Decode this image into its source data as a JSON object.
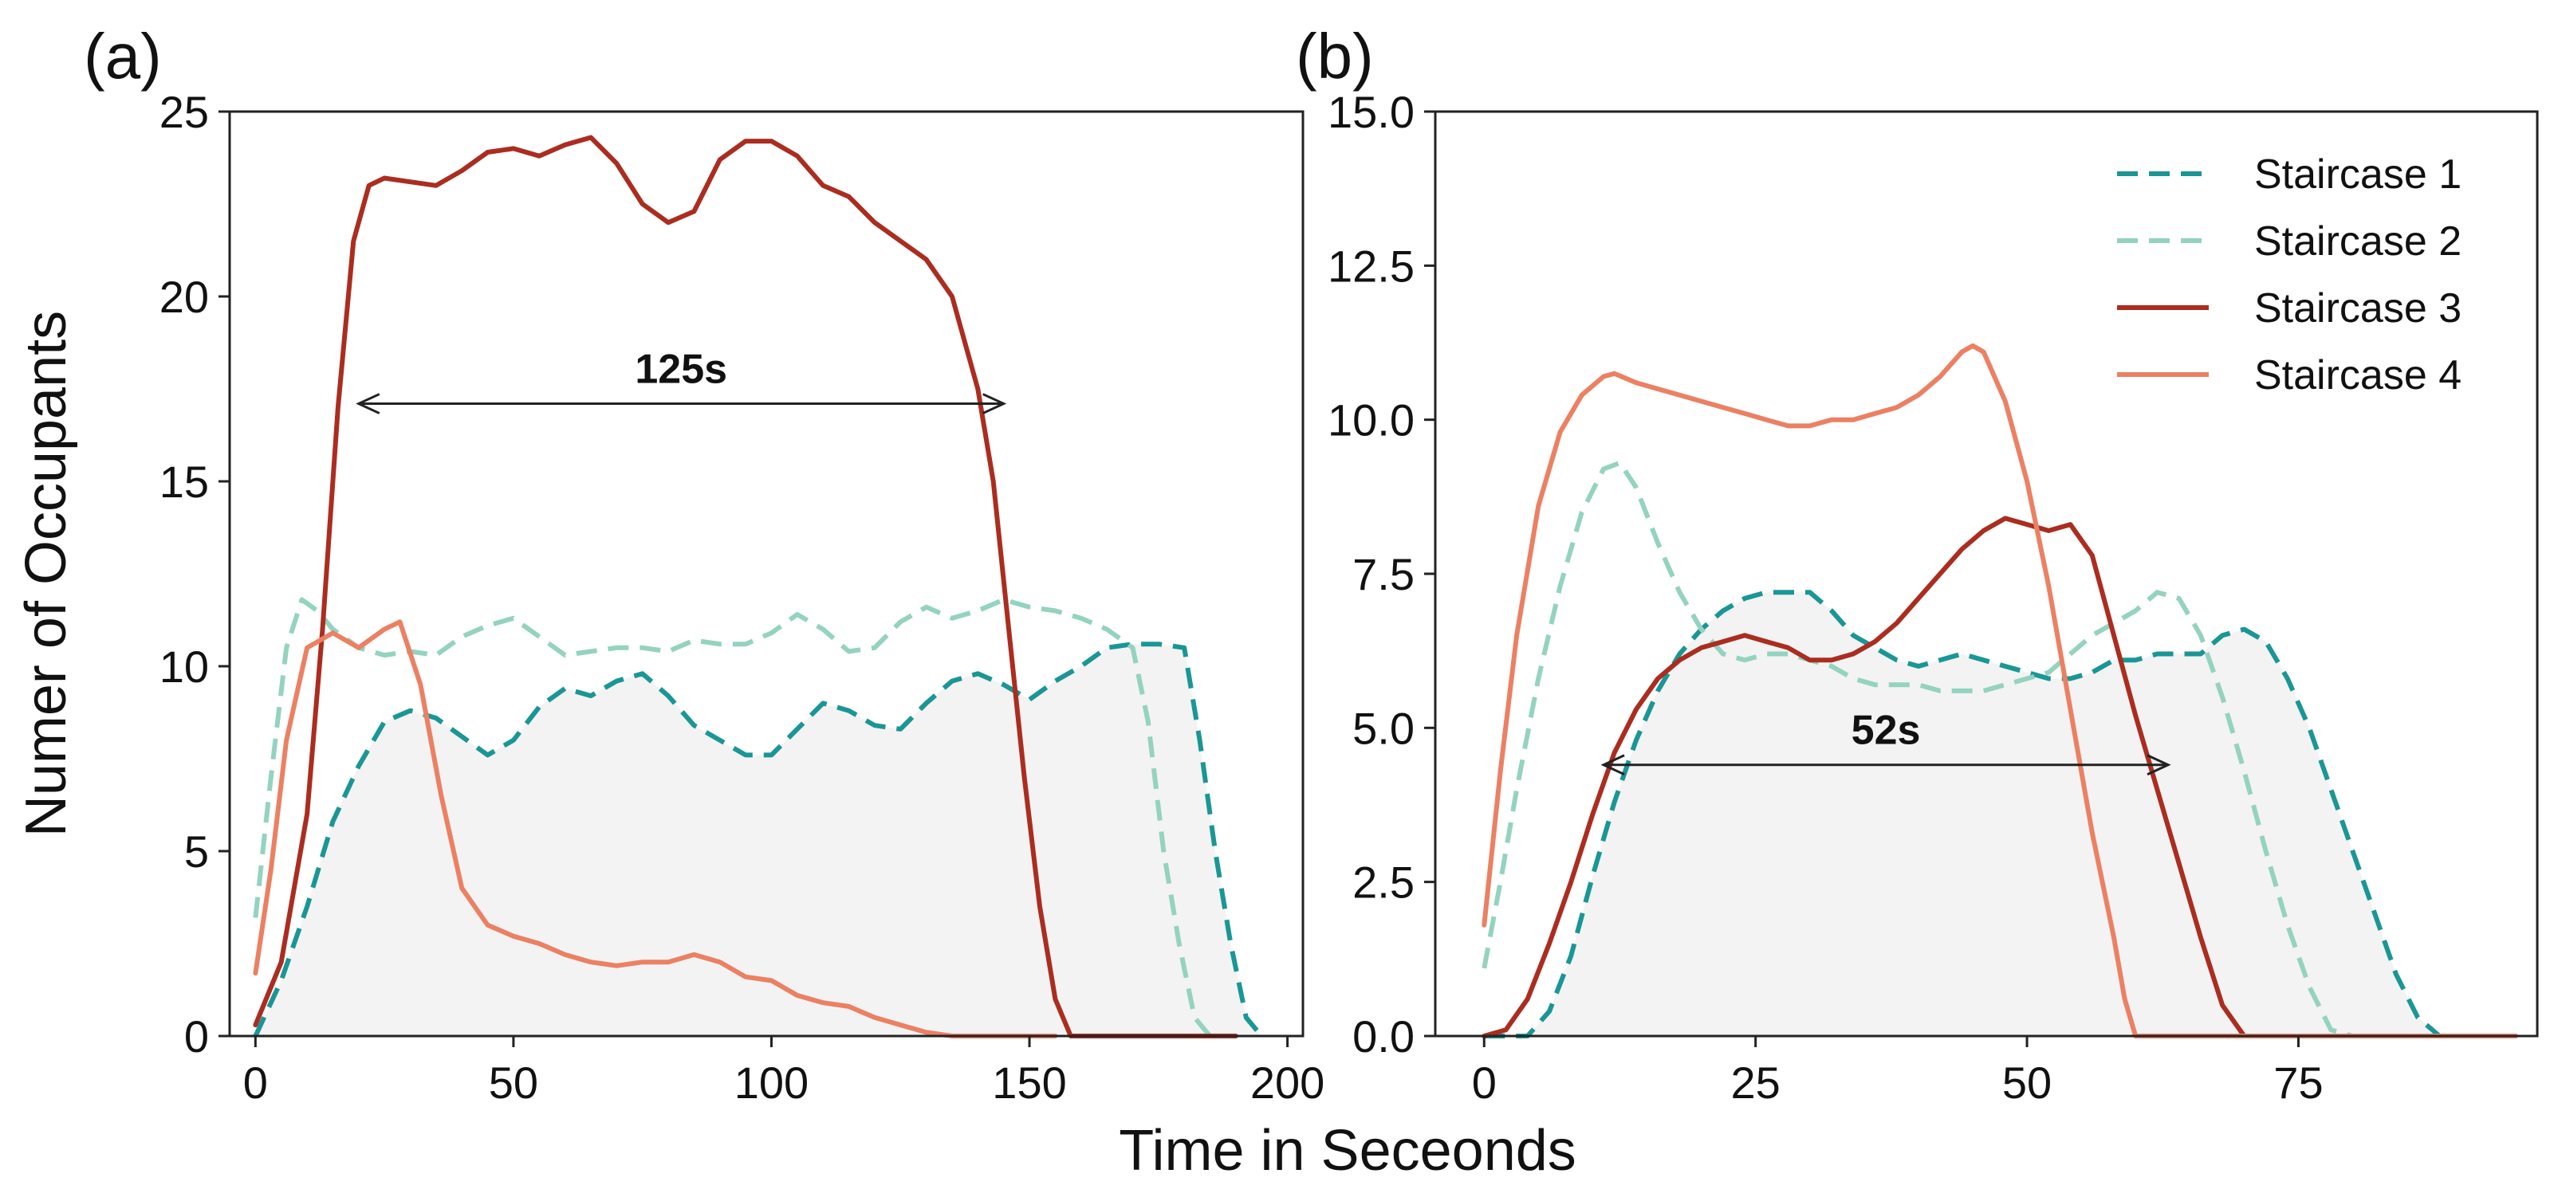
{
  "figure": {
    "xlabel": "Time in Seceonds",
    "ylabel": "Numer of Occupants"
  },
  "colors": {
    "Staircase 1": "#1a9696",
    "Staircase 2": "#93d3bf",
    "Staircase 3": "#ab2d1f",
    "Staircase 4": "#ec8062",
    "fill": "#f3f3f3",
    "axis": "#222222"
  },
  "chart_data": [
    {
      "panel": "(a)",
      "type": "line",
      "xlim": [
        -5,
        203
      ],
      "ylim": [
        0,
        25
      ],
      "xticks": [
        0,
        50,
        100,
        150,
        200
      ],
      "yticks": [
        0,
        5,
        10,
        15,
        20,
        25
      ],
      "xtick_labels": [
        "0",
        "50",
        "100",
        "150",
        "200"
      ],
      "ytick_labels": [
        "0",
        "5",
        "10",
        "15",
        "20",
        "25"
      ],
      "annotation": {
        "text": "125s",
        "x_start": 20,
        "x_end": 145,
        "y": 17.1
      },
      "series": [
        {
          "name": "Staircase 1",
          "style": "dashed",
          "x": [
            0,
            5,
            10,
            15,
            20,
            25,
            30,
            35,
            40,
            45,
            50,
            55,
            60,
            65,
            70,
            75,
            80,
            85,
            90,
            95,
            100,
            105,
            110,
            115,
            120,
            125,
            130,
            135,
            140,
            145,
            150,
            155,
            160,
            165,
            170,
            175,
            180,
            183,
            186,
            189,
            192,
            195
          ],
          "y": [
            0,
            1.5,
            3.5,
            5.8,
            7.3,
            8.5,
            8.8,
            8.6,
            8.1,
            7.6,
            8,
            8.9,
            9.4,
            9.2,
            9.6,
            9.8,
            9.2,
            8.4,
            8,
            7.6,
            7.6,
            8.3,
            9,
            8.8,
            8.4,
            8.3,
            9,
            9.6,
            9.8,
            9.5,
            9.1,
            9.6,
            10,
            10.5,
            10.6,
            10.6,
            10.5,
            8,
            5,
            2.5,
            0.5,
            0
          ]
        },
        {
          "name": "Staircase 2",
          "style": "dashed",
          "x": [
            0,
            3,
            6,
            9,
            12,
            15,
            20,
            25,
            30,
            35,
            40,
            45,
            50,
            55,
            60,
            65,
            70,
            75,
            80,
            85,
            90,
            95,
            100,
            105,
            110,
            115,
            120,
            125,
            130,
            135,
            140,
            145,
            150,
            155,
            160,
            165,
            170,
            173,
            176,
            179,
            182,
            185
          ],
          "y": [
            3.2,
            7,
            10.5,
            11.8,
            11.5,
            11,
            10.5,
            10.3,
            10.4,
            10.3,
            10.8,
            11.1,
            11.3,
            10.8,
            10.3,
            10.4,
            10.5,
            10.5,
            10.4,
            10.7,
            10.6,
            10.6,
            10.9,
            11.4,
            11,
            10.4,
            10.5,
            11.2,
            11.6,
            11.3,
            11.5,
            11.8,
            11.6,
            11.5,
            11.3,
            11,
            10.5,
            8.5,
            5,
            2.5,
            0.5,
            0
          ]
        },
        {
          "name": "Staircase 3",
          "style": "solid",
          "x": [
            0,
            5,
            10,
            13,
            16,
            19,
            22,
            25,
            30,
            35,
            40,
            45,
            50,
            55,
            60,
            65,
            70,
            75,
            80,
            85,
            90,
            95,
            100,
            105,
            110,
            115,
            120,
            125,
            130,
            135,
            140,
            143,
            146,
            149,
            152,
            155,
            158,
            160,
            170,
            180,
            190
          ],
          "y": [
            0.3,
            2,
            6,
            11,
            17,
            21.5,
            23,
            23.2,
            23.1,
            23,
            23.4,
            23.9,
            24,
            23.8,
            24.1,
            24.3,
            23.6,
            22.5,
            22,
            22.3,
            23.7,
            24.2,
            24.2,
            23.8,
            23,
            22.7,
            22,
            21.5,
            21,
            20,
            17.5,
            15,
            11,
            7,
            3.5,
            1,
            0,
            0,
            0,
            0,
            0
          ]
        },
        {
          "name": "Staircase 4",
          "style": "solid",
          "x": [
            0,
            3,
            6,
            10,
            15,
            20,
            25,
            28,
            32,
            36,
            40,
            45,
            50,
            55,
            60,
            65,
            70,
            75,
            80,
            85,
            90,
            95,
            100,
            105,
            110,
            115,
            120,
            125,
            130,
            135,
            140,
            145,
            150,
            155
          ],
          "y": [
            1.7,
            4.5,
            8,
            10.5,
            10.9,
            10.5,
            11,
            11.2,
            9.5,
            6.5,
            4,
            3,
            2.7,
            2.5,
            2.2,
            2,
            1.9,
            2,
            2,
            2.2,
            2,
            1.6,
            1.5,
            1.1,
            0.9,
            0.8,
            0.5,
            0.3,
            0.1,
            0,
            0,
            0,
            0,
            0
          ]
        }
      ]
    },
    {
      "panel": "(b)",
      "type": "line",
      "xlim": [
        -4.5,
        97
      ],
      "ylim": [
        0,
        15
      ],
      "xticks": [
        0,
        25,
        50,
        75
      ],
      "yticks": [
        0,
        2.5,
        5,
        7.5,
        10,
        12.5,
        15
      ],
      "xtick_labels": [
        "0",
        "25",
        "50",
        "75"
      ],
      "ytick_labels": [
        "0.0",
        "2.5",
        "5.0",
        "7.5",
        "10.0",
        "12.5",
        "15.0"
      ],
      "annotation": {
        "text": "52s",
        "x_start": 11,
        "x_end": 63,
        "y": 4.4
      },
      "legend": [
        "Staircase 1",
        "Staircase 2",
        "Staircase 3",
        "Staircase 4"
      ],
      "series": [
        {
          "name": "Staircase 1",
          "style": "dashed",
          "x": [
            0,
            2,
            4,
            6,
            8,
            10,
            12,
            14,
            16,
            18,
            20,
            22,
            24,
            26,
            28,
            30,
            32,
            34,
            36,
            38,
            40,
            42,
            44,
            46,
            48,
            50,
            52,
            54,
            56,
            58,
            60,
            62,
            64,
            66,
            68,
            70,
            72,
            74,
            76,
            78,
            80,
            82,
            84,
            86,
            88,
            90,
            95
          ],
          "y": [
            0,
            0,
            0,
            0.4,
            1.3,
            2.6,
            3.8,
            4.8,
            5.6,
            6.2,
            6.6,
            6.9,
            7.1,
            7.2,
            7.2,
            7.2,
            6.9,
            6.5,
            6.3,
            6.1,
            6,
            6.1,
            6.2,
            6.1,
            6,
            5.9,
            5.8,
            5.8,
            5.9,
            6.1,
            6.1,
            6.2,
            6.2,
            6.2,
            6.5,
            6.6,
            6.4,
            5.8,
            5,
            4,
            3,
            2,
            1,
            0.3,
            0,
            0,
            0
          ]
        },
        {
          "name": "Staircase 2",
          "style": "dashed",
          "x": [
            0,
            1.5,
            3,
            5,
            7,
            9,
            11,
            12.5,
            14,
            16,
            18,
            20,
            22,
            24,
            26,
            28,
            30,
            32,
            34,
            36,
            38,
            40,
            42,
            44,
            46,
            48,
            50,
            52,
            54,
            56,
            58,
            60,
            62,
            64,
            66,
            68,
            70,
            72,
            74,
            76,
            78,
            80,
            85,
            90,
            95
          ],
          "y": [
            1.1,
            2.5,
            4,
            5.8,
            7.3,
            8.5,
            9.2,
            9.3,
            8.9,
            8,
            7.2,
            6.6,
            6.2,
            6.1,
            6.2,
            6.2,
            6.1,
            6,
            5.8,
            5.7,
            5.7,
            5.7,
            5.6,
            5.6,
            5.6,
            5.7,
            5.8,
            5.9,
            6.2,
            6.5,
            6.7,
            6.9,
            7.2,
            7.1,
            6.5,
            5.5,
            4.3,
            3,
            1.8,
            0.8,
            0.1,
            0,
            0,
            0,
            0
          ]
        },
        {
          "name": "Staircase 3",
          "style": "solid",
          "x": [
            0,
            2,
            4,
            6,
            8,
            10,
            12,
            14,
            16,
            18,
            20,
            22,
            24,
            26,
            28,
            30,
            32,
            34,
            36,
            38,
            40,
            42,
            44,
            46,
            48,
            50,
            52,
            54,
            56,
            58,
            60,
            62,
            64,
            66,
            68,
            70,
            75,
            80,
            85,
            90,
            95
          ],
          "y": [
            0,
            0.1,
            0.6,
            1.5,
            2.5,
            3.6,
            4.6,
            5.3,
            5.8,
            6.1,
            6.3,
            6.4,
            6.5,
            6.4,
            6.3,
            6.1,
            6.1,
            6.2,
            6.4,
            6.7,
            7.1,
            7.5,
            7.9,
            8.2,
            8.4,
            8.3,
            8.2,
            8.3,
            7.8,
            6.5,
            5.2,
            4,
            2.8,
            1.6,
            0.5,
            0,
            0,
            0,
            0,
            0,
            0
          ]
        },
        {
          "name": "Staircase 4",
          "style": "solid",
          "x": [
            0,
            1.5,
            3,
            5,
            7,
            9,
            11,
            12,
            14,
            16,
            18,
            20,
            22,
            24,
            26,
            28,
            30,
            32,
            34,
            36,
            38,
            40,
            42,
            43,
            44,
            45,
            46,
            48,
            50,
            52,
            54,
            56,
            58,
            59,
            60,
            65,
            70,
            80,
            90,
            95
          ],
          "y": [
            1.8,
            4.3,
            6.5,
            8.6,
            9.8,
            10.4,
            10.7,
            10.75,
            10.6,
            10.5,
            10.4,
            10.3,
            10.2,
            10.1,
            10,
            9.9,
            9.9,
            10,
            10,
            10.1,
            10.2,
            10.4,
            10.7,
            10.9,
            11.1,
            11.2,
            11.1,
            10.3,
            9,
            7.3,
            5.3,
            3.3,
            1.6,
            0.6,
            0,
            0,
            0,
            0,
            0,
            0
          ]
        }
      ]
    }
  ]
}
